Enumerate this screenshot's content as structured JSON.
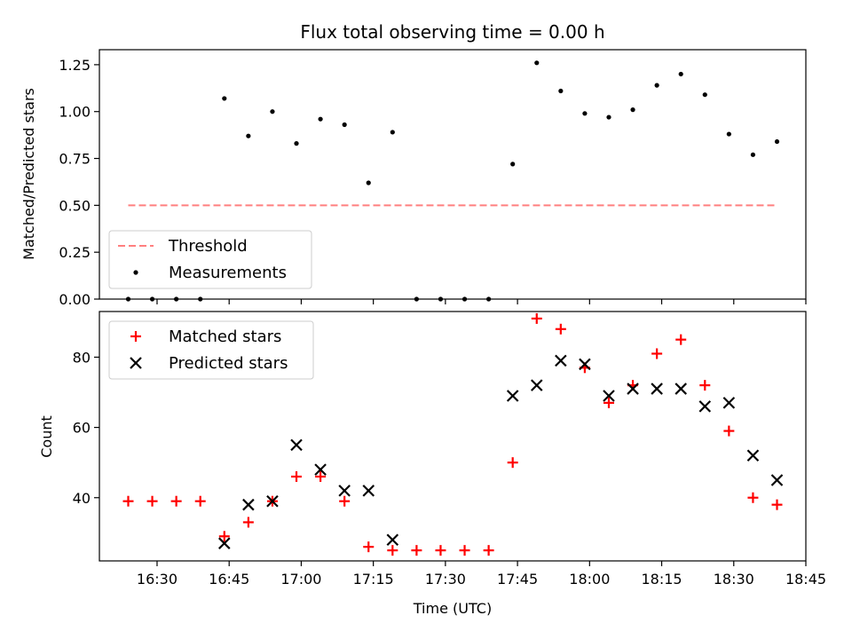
{
  "colors": {
    "threshold": "#ff7f7f",
    "measurement": "#000000",
    "matched": "#ff0000",
    "predicted": "#000000"
  },
  "chart_data": [
    {
      "type": "scatter",
      "title": "Flux total observing time = 0.00 h",
      "xlabel": "",
      "ylabel": "Matched/Predicted stars",
      "ylim": [
        0,
        1.33
      ],
      "yticks": [
        0,
        0.25,
        0.5,
        0.75,
        1.0,
        1.25
      ],
      "ytick_labels": [
        "0.00",
        "0.25",
        "0.50",
        "0.75",
        "1.00",
        "1.25"
      ],
      "xticks": [
        "16:30",
        "16:45",
        "17:00",
        "17:15",
        "17:30",
        "17:45",
        "18:00",
        "18:15",
        "18:30",
        "18:45"
      ],
      "legend_placement": "lower-left",
      "series": [
        {
          "name": "Threshold",
          "style": "dashed-line",
          "x": [
            "16:24",
            "18:39"
          ],
          "y": [
            0.5,
            0.5
          ]
        },
        {
          "name": "Measurements",
          "style": "dot",
          "x": [
            "16:24",
            "16:29",
            "16:34",
            "16:39",
            "16:44",
            "16:49",
            "16:54",
            "16:59",
            "17:04",
            "17:09",
            "17:14",
            "17:19",
            "17:24",
            "17:29",
            "17:34",
            "17:39",
            "17:44",
            "17:49",
            "17:54",
            "17:59",
            "18:04",
            "18:09",
            "18:14",
            "18:19",
            "18:24",
            "18:29",
            "18:34",
            "18:39"
          ],
          "y": [
            0.0,
            0.0,
            0.0,
            0.0,
            1.07,
            0.87,
            1.0,
            0.83,
            0.96,
            0.93,
            0.62,
            0.89,
            0.0,
            0.0,
            0.0,
            0.0,
            0.72,
            1.26,
            1.11,
            0.99,
            0.97,
            1.01,
            1.14,
            1.2,
            1.09,
            0.88,
            0.77,
            0.84
          ]
        }
      ]
    },
    {
      "type": "scatter",
      "title": "",
      "xlabel": "Time (UTC)",
      "ylabel": "Count",
      "ylim": [
        22,
        93
      ],
      "yticks": [
        40,
        60,
        80
      ],
      "ytick_labels": [
        "40",
        "60",
        "80"
      ],
      "xticks": [
        "16:30",
        "16:45",
        "17:00",
        "17:15",
        "17:30",
        "17:45",
        "18:00",
        "18:15",
        "18:30",
        "18:45"
      ],
      "xlim": [
        "16:18",
        "18:45"
      ],
      "legend_placement": "upper-left",
      "series": [
        {
          "name": "Matched stars",
          "marker": "plus",
          "x": [
            "16:24",
            "16:29",
            "16:34",
            "16:39",
            "16:44",
            "16:49",
            "16:54",
            "16:59",
            "17:04",
            "17:09",
            "17:14",
            "17:19",
            "17:24",
            "17:29",
            "17:34",
            "17:39",
            "17:44",
            "17:49",
            "17:54",
            "17:59",
            "18:04",
            "18:09",
            "18:14",
            "18:19",
            "18:24",
            "18:29",
            "18:34",
            "18:39"
          ],
          "y": [
            39,
            39,
            39,
            39,
            29,
            33,
            39,
            46,
            46,
            39,
            26,
            25,
            25,
            25,
            25,
            25,
            50,
            91,
            88,
            77,
            67,
            72,
            81,
            85,
            72,
            59,
            40,
            38
          ]
        },
        {
          "name": "Predicted stars",
          "marker": "cross",
          "x": [
            "16:44",
            "16:49",
            "16:54",
            "16:59",
            "17:04",
            "17:09",
            "17:14",
            "17:19",
            "17:44",
            "17:49",
            "17:54",
            "17:59",
            "18:04",
            "18:09",
            "18:14",
            "18:19",
            "18:24",
            "18:29",
            "18:34",
            "18:39"
          ],
          "y": [
            27,
            38,
            39,
            55,
            48,
            42,
            42,
            28,
            69,
            72,
            79,
            78,
            69,
            71,
            71,
            71,
            66,
            67,
            52,
            45
          ]
        }
      ]
    }
  ]
}
